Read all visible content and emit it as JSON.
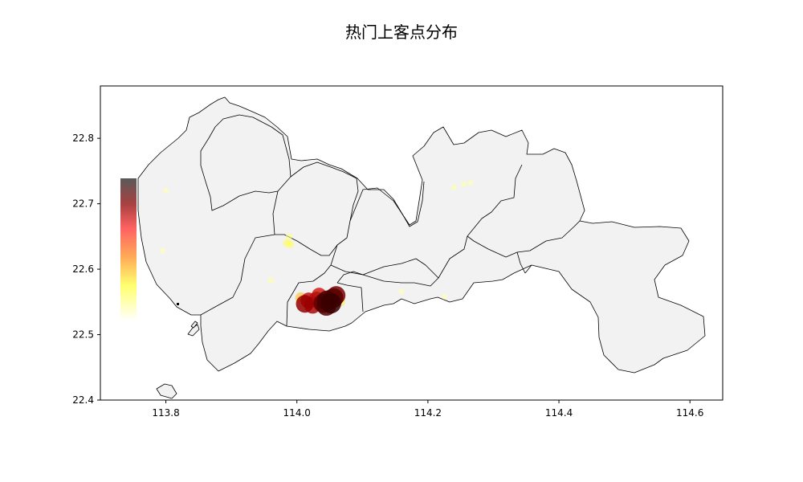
{
  "figure": {
    "title": "热门上客点分布"
  },
  "chart_data": {
    "type": "map-scatter",
    "title": "热门上客点分布",
    "xlim": [
      113.7,
      114.65
    ],
    "ylim": [
      22.4,
      22.88
    ],
    "x_ticks": [
      {
        "value": 113.8,
        "label": "113.8"
      },
      {
        "value": 114.0,
        "label": "114.0"
      },
      {
        "value": 114.2,
        "label": "114.2"
      },
      {
        "value": 114.4,
        "label": "114.4"
      },
      {
        "value": 114.6,
        "label": "114.6"
      }
    ],
    "y_ticks": [
      {
        "value": 22.4,
        "label": "22.4"
      },
      {
        "value": 22.5,
        "label": "22.5"
      },
      {
        "value": 22.6,
        "label": "22.6"
      },
      {
        "value": 22.7,
        "label": "22.7"
      },
      {
        "value": 22.8,
        "label": "22.8"
      }
    ],
    "colormap": "hot",
    "pickup_points": [
      {
        "lon": 114.012,
        "lat": 22.547,
        "heat": 0.8
      },
      {
        "lon": 114.018,
        "lat": 22.552,
        "heat": 0.7
      },
      {
        "lon": 114.024,
        "lat": 22.545,
        "heat": 0.75
      },
      {
        "lon": 114.03,
        "lat": 22.553,
        "heat": 0.72
      },
      {
        "lon": 114.034,
        "lat": 22.56,
        "heat": 0.65
      },
      {
        "lon": 114.04,
        "lat": 22.548,
        "heat": 0.9
      },
      {
        "lon": 114.046,
        "lat": 22.552,
        "heat": 0.95
      },
      {
        "lon": 114.052,
        "lat": 22.548,
        "heat": 0.98
      },
      {
        "lon": 114.056,
        "lat": 22.556,
        "heat": 0.92
      },
      {
        "lon": 114.06,
        "lat": 22.56,
        "heat": 0.85
      },
      {
        "lon": 114.045,
        "lat": 22.544,
        "heat": 0.93
      },
      {
        "lon": 114.006,
        "lat": 22.556,
        "heat": 0.4
      },
      {
        "lon": 114.067,
        "lat": 22.55,
        "heat": 0.25
      },
      {
        "lon": 113.985,
        "lat": 22.64,
        "heat": 0.2
      },
      {
        "lon": 113.99,
        "lat": 22.638,
        "heat": 0.18
      },
      {
        "lon": 113.988,
        "lat": 22.65,
        "heat": 0.12
      },
      {
        "lon": 113.96,
        "lat": 22.583,
        "heat": 0.08
      },
      {
        "lon": 113.8,
        "lat": 22.72,
        "heat": 0.06
      },
      {
        "lon": 113.795,
        "lat": 22.628,
        "heat": 0.06
      },
      {
        "lon": 114.24,
        "lat": 22.725,
        "heat": 0.07
      },
      {
        "lon": 114.255,
        "lat": 22.73,
        "heat": 0.07
      },
      {
        "lon": 114.265,
        "lat": 22.732,
        "heat": 0.06
      },
      {
        "lon": 114.16,
        "lat": 22.566,
        "heat": 0.06
      },
      {
        "lon": 114.225,
        "lat": 22.558,
        "heat": 0.06
      }
    ]
  }
}
